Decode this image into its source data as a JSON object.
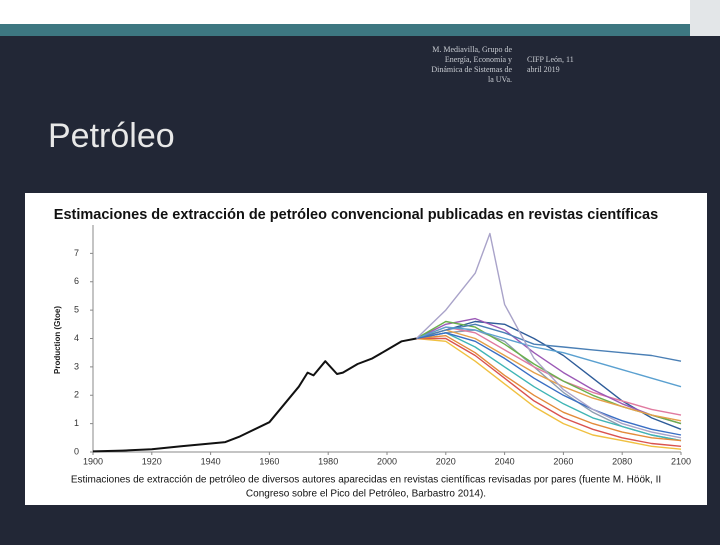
{
  "header": {
    "author_lines": [
      "M. Mediavilla, Grupo de",
      "Energía, Economía y",
      "Dinámica de Sistemas de",
      "la UVa."
    ],
    "event_lines": [
      "CIFP León, 11",
      "abril 2019"
    ],
    "title": "Petróleo"
  },
  "caption_lines": [
    "Estimaciones de extracción de petróleo de diversos autores aparecidas en revistas científicas revisadas por pares (fuente M. Höök, II",
    "Congreso sobre el Pico del Petróleo, Barbastro 2014)."
  ],
  "chart_data": {
    "type": "line",
    "title": "Estimaciones de extracción de petróleo convencional publicadas en revistas científicas",
    "y_label": "Production (Gtoe)",
    "xlim": [
      1900,
      2100
    ],
    "xticks": [
      1900,
      1920,
      1940,
      1960,
      1980,
      2000,
      2020,
      2040,
      2060,
      2080,
      2100
    ],
    "ylim": [
      0,
      8
    ],
    "yticks": [
      0,
      1,
      2,
      3,
      4,
      5,
      6,
      7
    ],
    "series": [
      {
        "color": "#111111",
        "x": [
          1900,
          1910,
          1920,
          1930,
          1940,
          1945,
          1950,
          1960,
          1970,
          1973,
          1975,
          1979,
          1983,
          1985,
          1990,
          1995,
          2000,
          2005,
          2010
        ],
        "values": [
          0.02,
          0.05,
          0.1,
          0.2,
          0.3,
          0.35,
          0.55,
          1.05,
          2.3,
          2.8,
          2.7,
          3.2,
          2.75,
          2.8,
          3.1,
          3.3,
          3.6,
          3.9,
          4.0
        ]
      },
      {
        "color": "#a9a3c9",
        "x": [
          2010,
          2020,
          2030,
          2035,
          2040,
          2050,
          2060,
          2070,
          2080,
          2090,
          2100
        ],
        "values": [
          4.0,
          5.0,
          6.3,
          7.7,
          5.2,
          3.3,
          2.2,
          1.5,
          1.0,
          0.7,
          0.5
        ]
      },
      {
        "color": "#3a6fc4",
        "x": [
          2010,
          2020,
          2030,
          2040,
          2050,
          2060,
          2070,
          2080,
          2090,
          2100
        ],
        "values": [
          4.0,
          4.2,
          3.9,
          3.3,
          2.6,
          2.0,
          1.5,
          1.1,
          0.8,
          0.6
        ]
      },
      {
        "color": "#5aa0d0",
        "x": [
          2010,
          2020,
          2030,
          2040,
          2050,
          2060,
          2070,
          2080,
          2090,
          2100
        ],
        "values": [
          4.0,
          4.4,
          4.3,
          4.0,
          3.7,
          3.5,
          3.2,
          2.9,
          2.6,
          2.3
        ]
      },
      {
        "color": "#4a7fb5",
        "x": [
          2010,
          2020,
          2030,
          2040,
          2050,
          2060,
          2070,
          2080,
          2090,
          2100
        ],
        "values": [
          4.0,
          4.3,
          4.5,
          4.2,
          3.8,
          3.7,
          3.6,
          3.5,
          3.4,
          3.2
        ]
      },
      {
        "color": "#e38b3a",
        "x": [
          2010,
          2020,
          2030,
          2040,
          2050,
          2060,
          2070,
          2080,
          2090,
          2100
        ],
        "values": [
          4.0,
          4.1,
          3.5,
          2.7,
          2.0,
          1.4,
          1.0,
          0.7,
          0.5,
          0.4
        ]
      },
      {
        "color": "#e5a04a",
        "x": [
          2010,
          2020,
          2030,
          2040,
          2050,
          2060,
          2070,
          2080,
          2090,
          2100
        ],
        "values": [
          4.0,
          4.3,
          4.0,
          3.4,
          2.8,
          2.3,
          1.9,
          1.6,
          1.3,
          1.1
        ]
      },
      {
        "color": "#6ab04c",
        "x": [
          2010,
          2020,
          2030,
          2040,
          2050,
          2060,
          2070,
          2080,
          2090,
          2100
        ],
        "values": [
          4.0,
          4.6,
          4.4,
          3.8,
          3.1,
          2.5,
          2.0,
          1.6,
          1.3,
          1.0
        ]
      },
      {
        "color": "#d9534f",
        "x": [
          2010,
          2020,
          2030,
          2040,
          2050,
          2060,
          2070,
          2080,
          2090,
          2100
        ],
        "values": [
          4.0,
          4.0,
          3.4,
          2.6,
          1.8,
          1.2,
          0.8,
          0.5,
          0.3,
          0.2
        ]
      },
      {
        "color": "#9b59b6",
        "x": [
          2010,
          2020,
          2030,
          2040,
          2050,
          2060,
          2070,
          2080,
          2090,
          2100
        ],
        "values": [
          4.0,
          4.5,
          4.7,
          4.3,
          3.5,
          2.8,
          2.2,
          1.7,
          1.3,
          1.0
        ]
      },
      {
        "color": "#3fb5b5",
        "x": [
          2010,
          2020,
          2030,
          2040,
          2050,
          2060,
          2070,
          2080,
          2090,
          2100
        ],
        "values": [
          4.0,
          4.2,
          3.7,
          3.0,
          2.3,
          1.7,
          1.2,
          0.9,
          0.6,
          0.4
        ]
      },
      {
        "color": "#f0c040",
        "x": [
          2010,
          2020,
          2030,
          2040,
          2050,
          2060,
          2070,
          2080,
          2090,
          2100
        ],
        "values": [
          4.0,
          3.9,
          3.2,
          2.4,
          1.6,
          1.0,
          0.6,
          0.4,
          0.2,
          0.1
        ]
      },
      {
        "color": "#e07aa0",
        "x": [
          2010,
          2020,
          2030,
          2040,
          2050,
          2060,
          2070,
          2080,
          2090,
          2100
        ],
        "values": [
          4.0,
          4.4,
          4.2,
          3.6,
          3.0,
          2.5,
          2.1,
          1.8,
          1.5,
          1.3
        ]
      },
      {
        "color": "#2e5c99",
        "x": [
          2010,
          2020,
          2030,
          2040,
          2050,
          2060,
          2070,
          2080,
          2090,
          2100
        ],
        "values": [
          4.0,
          4.3,
          4.6,
          4.5,
          4.0,
          3.4,
          2.6,
          1.8,
          1.2,
          0.8
        ]
      },
      {
        "color": "#8c9db0",
        "x": [
          2010,
          2020,
          2030,
          2040,
          2050,
          2060,
          2070,
          2080,
          2090,
          2100
        ],
        "values": [
          4.0,
          4.2,
          4.3,
          3.9,
          3.0,
          2.1,
          1.4,
          0.9,
          0.6,
          0.4
        ]
      }
    ]
  }
}
